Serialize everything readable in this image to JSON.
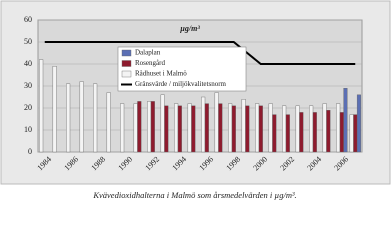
{
  "chart_data": {
    "type": "bar",
    "title": "Kvävedioxidhalterna i Malmö som årsmedelvärden i µg/m³.",
    "ylabel": "µg/m³",
    "categories": [
      "1984",
      null,
      "1986",
      null,
      "1988",
      null,
      "1990",
      null,
      "1992",
      null,
      "1994",
      null,
      "1996",
      null,
      "1998",
      null,
      "2000",
      null,
      "2002",
      null,
      "2004",
      null,
      "2006",
      null
    ],
    "series": [
      {
        "name": "Dalaplan",
        "color": "#5b6fb4",
        "values": [
          null,
          null,
          null,
          null,
          null,
          null,
          null,
          null,
          null,
          null,
          null,
          null,
          null,
          null,
          null,
          null,
          null,
          null,
          null,
          null,
          null,
          null,
          29,
          26
        ]
      },
      {
        "name": "Rosengård",
        "color": "#8e1b2e",
        "values": [
          null,
          null,
          null,
          null,
          null,
          null,
          null,
          23,
          23,
          21,
          21,
          21,
          22,
          22,
          21,
          21,
          21,
          17,
          17,
          18,
          18,
          19,
          18,
          17
        ]
      },
      {
        "name": "Rådhuset i Malmö",
        "color": "#f4f4f4",
        "values": [
          42,
          39,
          31,
          32,
          31,
          27,
          22,
          22,
          23,
          26,
          22,
          22,
          25,
          27,
          22,
          24,
          22,
          22,
          21,
          21,
          21,
          22,
          22,
          17
        ]
      },
      {
        "name": "Gränsvärde / miljökvalitetsnorm",
        "type": "line",
        "color": "#000000",
        "values": [
          50,
          50,
          50,
          50,
          50,
          50,
          50,
          50,
          50,
          50,
          50,
          50,
          50,
          50,
          50,
          45,
          40,
          40,
          40,
          40,
          40,
          40,
          40,
          40
        ]
      }
    ],
    "ylim": [
      0,
      60
    ],
    "yticks": [
      0,
      10,
      20,
      30,
      40,
      50,
      60
    ],
    "grid": true
  }
}
